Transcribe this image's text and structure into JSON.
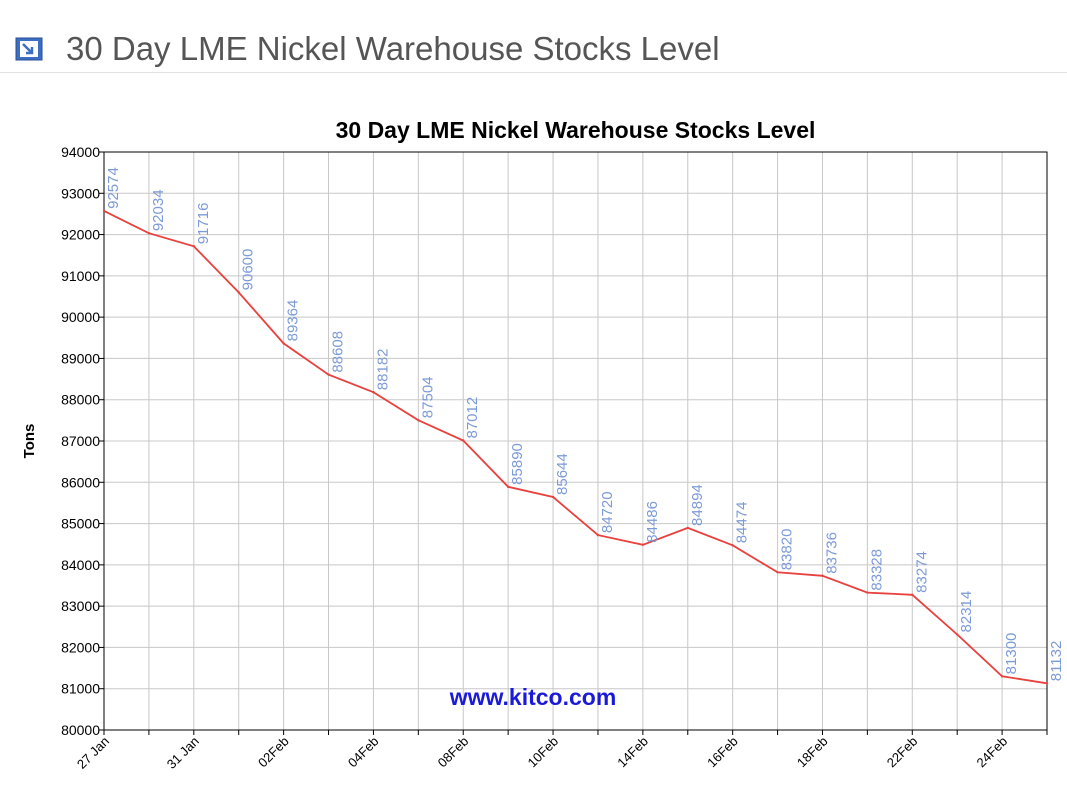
{
  "page": {
    "heading": "30 Day LME Nickel Warehouse Stocks Level",
    "icon": "arrow-square-icon"
  },
  "colors": {
    "line": "#e8413e",
    "data_label": "#7b9ad8",
    "watermark": "#1a1ad8",
    "grid": "#c8c8c8",
    "icon_fill": "#3a6fc4"
  },
  "chart_data": {
    "type": "line",
    "title": "30 Day LME Nickel Warehouse Stocks Level",
    "ylabel": "Tons",
    "xlabel": "",
    "ylim": [
      80000,
      94000
    ],
    "y_ticks": [
      80000,
      81000,
      82000,
      83000,
      84000,
      85000,
      86000,
      87000,
      88000,
      89000,
      90000,
      91000,
      92000,
      93000,
      94000
    ],
    "x_tick_labels": [
      "27 Jan",
      "31 Jan",
      "02Feb",
      "04Feb",
      "08Feb",
      "10Feb",
      "14Feb",
      "16Feb",
      "18Feb",
      "22Feb",
      "24Feb"
    ],
    "values": [
      92574,
      92034,
      91716,
      90600,
      89364,
      88608,
      88182,
      87504,
      87012,
      85890,
      85644,
      84720,
      84486,
      84894,
      84474,
      83820,
      83736,
      83328,
      83274,
      82314,
      81300,
      81132
    ],
    "watermark": "www.kitco.com",
    "grid": true
  }
}
